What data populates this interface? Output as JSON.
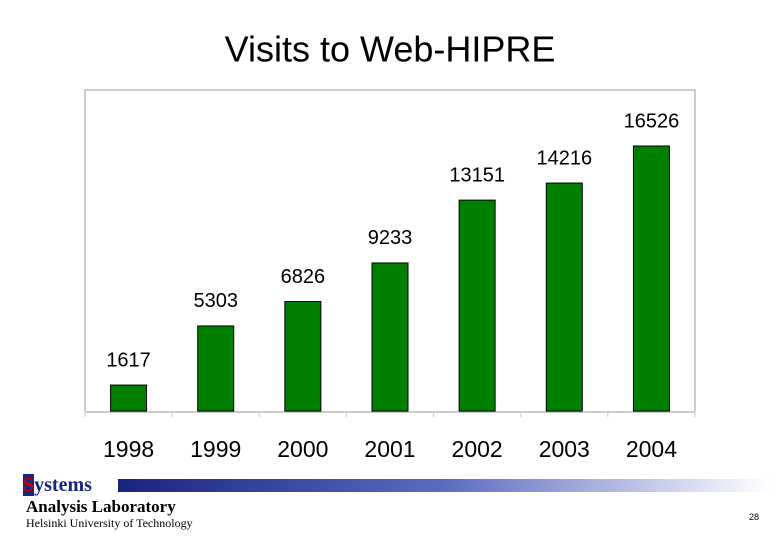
{
  "chart_data": {
    "type": "bar",
    "title": "Visits to Web-HIPRE",
    "categories": [
      "1998",
      "1999",
      "2000",
      "2001",
      "2002",
      "2003",
      "2004"
    ],
    "values": [
      1617,
      5303,
      6826,
      9233,
      13151,
      14216,
      16526
    ],
    "color": "#008000"
  },
  "footer": {
    "logo": "Systems",
    "lab": "Analysis Laboratory",
    "university": "Helsinki University of Technology",
    "page": "28"
  }
}
